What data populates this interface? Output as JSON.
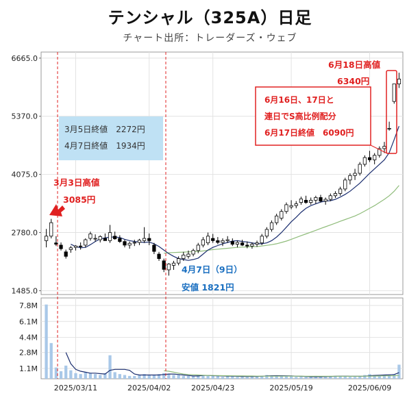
{
  "title": "テンシャル（325A）日足",
  "subtitle": "チャート出所：トレーダーズ・ウェブ",
  "chart_data": [
    {
      "type": "candlestick",
      "y_ticks": [
        "6665.0",
        "5370.0",
        "4075.0",
        "2780.0",
        "1485.0"
      ],
      "y_tick_values": [
        6665,
        5370,
        4075,
        2780,
        1485
      ],
      "ylim": [
        1400,
        6800
      ],
      "x_tick_labels": [
        "2025/03/11",
        "2025/04/02",
        "2025/04/23",
        "2025/05/19",
        "2025/06/09"
      ],
      "x_tick_index": [
        6,
        21,
        34,
        50,
        66
      ],
      "candles": [
        [
          2600,
          2860,
          2450,
          2700
        ],
        [
          2700,
          3085,
          2650,
          3000
        ],
        [
          2550,
          2700,
          2480,
          2520
        ],
        [
          2500,
          2560,
          2380,
          2420
        ],
        [
          2350,
          2400,
          2200,
          2250
        ],
        [
          2400,
          2480,
          2330,
          2440
        ],
        [
          2450,
          2500,
          2380,
          2480
        ],
        [
          2480,
          2560,
          2400,
          2470
        ],
        [
          2500,
          2650,
          2450,
          2620
        ],
        [
          2650,
          2800,
          2600,
          2750
        ],
        [
          2650,
          2740,
          2580,
          2650
        ],
        [
          2620,
          2720,
          2560,
          2690
        ],
        [
          2650,
          2760,
          2600,
          2600
        ],
        [
          2600,
          2950,
          2550,
          2780
        ],
        [
          2700,
          2800,
          2620,
          2640
        ],
        [
          2650,
          2720,
          2550,
          2580
        ],
        [
          2580,
          2620,
          2450,
          2500
        ],
        [
          2500,
          2580,
          2420,
          2540
        ],
        [
          2550,
          2620,
          2480,
          2560
        ],
        [
          2560,
          2640,
          2500,
          2610
        ],
        [
          2600,
          2900,
          2550,
          2650
        ],
        [
          2650,
          2760,
          2500,
          2600
        ],
        [
          2500,
          2550,
          2300,
          2360
        ],
        [
          2300,
          2350,
          2150,
          2200
        ],
        [
          2150,
          2200,
          1900,
          1960
        ],
        [
          1950,
          2100,
          1821,
          2080
        ],
        [
          2050,
          2150,
          1950,
          2100
        ],
        [
          2100,
          2250,
          2050,
          2200
        ],
        [
          2200,
          2350,
          2150,
          2280
        ],
        [
          2250,
          2380,
          2200,
          2300
        ],
        [
          2300,
          2420,
          2250,
          2380
        ],
        [
          2380,
          2550,
          2320,
          2500
        ],
        [
          2500,
          2680,
          2450,
          2620
        ],
        [
          2550,
          2780,
          2500,
          2700
        ],
        [
          2650,
          2750,
          2550,
          2600
        ],
        [
          2600,
          2680,
          2520,
          2560
        ],
        [
          2560,
          2650,
          2480,
          2600
        ],
        [
          2600,
          2700,
          2550,
          2620
        ],
        [
          2580,
          2650,
          2480,
          2520
        ],
        [
          2520,
          2600,
          2450,
          2560
        ],
        [
          2550,
          2620,
          2480,
          2500
        ],
        [
          2500,
          2580,
          2430,
          2480
        ],
        [
          2480,
          2560,
          2420,
          2520
        ],
        [
          2520,
          2600,
          2460,
          2550
        ],
        [
          2550,
          2750,
          2500,
          2700
        ],
        [
          2700,
          2900,
          2650,
          2850
        ],
        [
          2850,
          3050,
          2800,
          3000
        ],
        [
          3000,
          3200,
          2950,
          3150
        ],
        [
          3100,
          3300,
          3050,
          3250
        ],
        [
          3250,
          3450,
          3200,
          3400
        ],
        [
          3350,
          3500,
          3300,
          3380
        ],
        [
          3380,
          3480,
          3320,
          3420
        ],
        [
          3450,
          3580,
          3400,
          3530
        ],
        [
          3500,
          3600,
          3420,
          3450
        ],
        [
          3450,
          3560,
          3400,
          3500
        ],
        [
          3500,
          3600,
          3420,
          3560
        ],
        [
          3560,
          3620,
          3450,
          3480
        ],
        [
          3480,
          3560,
          3400,
          3520
        ],
        [
          3520,
          3650,
          3480,
          3600
        ],
        [
          3600,
          3700,
          3550,
          3650
        ],
        [
          3650,
          3800,
          3600,
          3750
        ],
        [
          3750,
          4000,
          3700,
          3950
        ],
        [
          3950,
          4100,
          3850,
          4050
        ],
        [
          4050,
          4200,
          3950,
          4100
        ],
        [
          4100,
          4350,
          4050,
          4300
        ],
        [
          4300,
          4500,
          4250,
          4450
        ],
        [
          4450,
          4600,
          4350,
          4400
        ],
        [
          4400,
          4550,
          4300,
          4500
        ],
        [
          4500,
          4700,
          4450,
          4650
        ],
        [
          4650,
          4800,
          4550,
          4700
        ],
        [
          5100,
          5250,
          5050,
          5100
        ],
        [
          5700,
          6090,
          5650,
          6090
        ],
        [
          6090,
          6340,
          6000,
          6200
        ]
      ],
      "ma_short": [
        null,
        null,
        null,
        null,
        null,
        2520,
        2470,
        2440,
        2450,
        2510,
        2580,
        2640,
        2660,
        2680,
        2680,
        2670,
        2630,
        2600,
        2580,
        2570,
        2560,
        2570,
        2530,
        2470,
        2390,
        2310,
        2250,
        2200,
        2180,
        2160,
        2180,
        2210,
        2300,
        2390,
        2450,
        2490,
        2530,
        2560,
        2590,
        2600,
        2580,
        2570,
        2550,
        2530,
        2530,
        2550,
        2600,
        2680,
        2780,
        2900,
        3020,
        3120,
        3230,
        3320,
        3380,
        3420,
        3460,
        3480,
        3490,
        3520,
        3570,
        3630,
        3700,
        3790,
        3880,
        3990,
        4100,
        4200,
        4300,
        4400,
        4560,
        4850,
        5150
      ],
      "ma_long": [
        null,
        null,
        null,
        null,
        null,
        null,
        null,
        null,
        null,
        null,
        null,
        null,
        null,
        null,
        null,
        null,
        null,
        null,
        null,
        null,
        null,
        null,
        null,
        null,
        2320,
        2330,
        2335,
        2340,
        2345,
        2350,
        2355,
        2360,
        2370,
        2385,
        2400,
        2410,
        2420,
        2430,
        2440,
        2450,
        2455,
        2460,
        2465,
        2470,
        2480,
        2495,
        2510,
        2530,
        2560,
        2590,
        2630,
        2670,
        2710,
        2750,
        2790,
        2830,
        2870,
        2910,
        2950,
        2990,
        3030,
        3070,
        3110,
        3150,
        3200,
        3260,
        3320,
        3380,
        3450,
        3520,
        3600,
        3700,
        3830
      ],
      "volume_ticks": [
        "7.8M",
        "6.1M",
        "4.4M",
        "2.8M",
        "1.1M"
      ],
      "volume_tick_values": [
        7.8,
        6.1,
        4.4,
        2.8,
        1.1
      ],
      "volume_ylim": [
        0,
        8.6
      ],
      "volume": [
        7.9,
        3.8,
        1.2,
        0.8,
        1.4,
        0.9,
        0.6,
        0.5,
        0.7,
        0.6,
        0.5,
        0.4,
        0.6,
        2.5,
        0.7,
        0.5,
        0.4,
        0.3,
        0.3,
        0.4,
        0.5,
        0.4,
        0.4,
        0.5,
        0.6,
        0.5,
        0.4,
        0.4,
        0.3,
        0.3,
        0.3,
        0.4,
        0.4,
        0.3,
        0.3,
        0.3,
        0.2,
        0.3,
        0.3,
        0.2,
        0.2,
        0.2,
        0.3,
        0.3,
        0.3,
        0.4,
        0.3,
        0.3,
        0.3,
        0.3,
        0.3,
        0.2,
        0.2,
        0.2,
        0.2,
        0.3,
        0.2,
        0.2,
        0.3,
        0.3,
        0.3,
        0.3,
        0.2,
        0.2,
        0.3,
        0.4,
        0.5,
        0.4,
        0.3,
        0.4,
        0.4,
        0.5,
        1.5
      ],
      "volume_ma_short": [
        null,
        null,
        null,
        null,
        2.8,
        1.6,
        1.0,
        0.8,
        0.7,
        0.6,
        0.6,
        0.55,
        0.5,
        0.9,
        1.0,
        1.0,
        1.0,
        0.9,
        0.5,
        0.4,
        0.4,
        0.4,
        0.4,
        0.4,
        0.45,
        0.5,
        0.5,
        0.45,
        0.4,
        0.35,
        0.3,
        0.3,
        0.35,
        0.35,
        0.33,
        0.32,
        0.3,
        0.28,
        0.28,
        0.26,
        0.25,
        0.24,
        0.24,
        0.25,
        0.27,
        0.3,
        0.32,
        0.33,
        0.32,
        0.31,
        0.3,
        0.28,
        0.26,
        0.24,
        0.22,
        0.22,
        0.22,
        0.23,
        0.24,
        0.26,
        0.28,
        0.28,
        0.27,
        0.26,
        0.26,
        0.28,
        0.32,
        0.36,
        0.38,
        0.4,
        0.42,
        0.45,
        0.65
      ],
      "volume_ma_long": [
        null,
        null,
        null,
        null,
        null,
        null,
        null,
        null,
        null,
        null,
        null,
        null,
        null,
        null,
        null,
        null,
        null,
        null,
        null,
        null,
        null,
        null,
        null,
        null,
        0.85,
        0.8,
        0.7,
        0.6,
        0.5,
        0.45,
        0.42,
        0.4,
        0.38,
        0.36,
        0.35,
        0.34,
        0.33,
        0.32,
        0.31,
        0.3,
        0.3,
        0.29,
        0.29,
        0.28,
        0.28,
        0.28,
        0.28,
        0.28,
        0.28,
        0.28,
        0.28,
        0.28,
        0.28,
        0.27,
        0.27,
        0.27,
        0.27,
        0.27,
        0.27,
        0.27,
        0.27,
        0.27,
        0.27,
        0.27,
        0.27,
        0.28,
        0.28,
        0.29,
        0.3,
        0.31,
        0.32,
        0.33,
        0.35
      ],
      "colors": {
        "up": "#ffffff",
        "down": "#000000",
        "ma_short": "#1a2d6e",
        "ma_long": "#8fbc7a",
        "volume": "#a9c8e8",
        "marker": "#e02020",
        "blue_text": "#1a6fc0",
        "info_box": "#bfe1f4"
      }
    }
  ],
  "annotations": {
    "high_mar3_line1": "3月3日高値",
    "high_mar3_line2": "3085円",
    "info_line1": "3月5日終値　2272円",
    "info_line2": "4月7日終値　1934円",
    "low_apr7_line1": "4月7日（9日）",
    "low_apr7_line2": "安値 1821円",
    "high_jun18_line1": "6月18日高値",
    "high_jun18_line2": "6340円",
    "jun_box_line1": "6月16日、17日と",
    "jun_box_line2": "連日でS高比例配分",
    "jun_box_line3": "6月17日終値　6090円"
  }
}
